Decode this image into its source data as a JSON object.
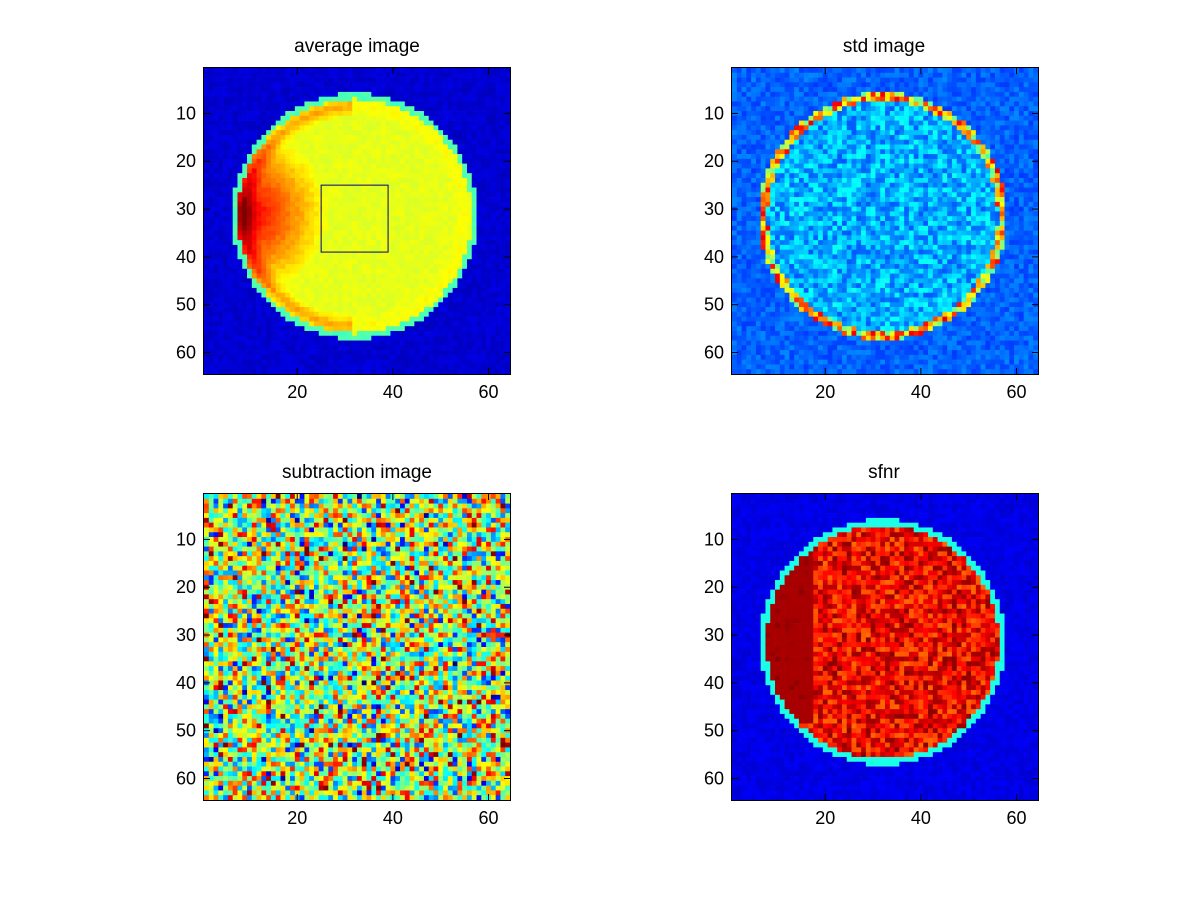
{
  "chart_data": [
    {
      "type": "heatmap",
      "title": "average image",
      "colormap": "jet",
      "grid_size": [
        64,
        64
      ],
      "xlim": [
        0.5,
        64.5
      ],
      "ylim": [
        0.5,
        64.5
      ],
      "y_direction": "reversed",
      "xticks": [
        20,
        40,
        60
      ],
      "yticks": [
        10,
        20,
        30,
        40,
        50,
        60
      ],
      "pattern": "disk",
      "disk": {
        "center": [
          32,
          31.5
        ],
        "radius": 25
      },
      "background_value": 0.08,
      "disk_value": 0.6,
      "roi_box": {
        "x_range": [
          25,
          39
        ],
        "y_range": [
          25,
          39
        ],
        "color": "#000080"
      }
    },
    {
      "type": "heatmap",
      "title": "std image",
      "colormap": "jet",
      "grid_size": [
        64,
        64
      ],
      "xlim": [
        0.5,
        64.5
      ],
      "ylim": [
        0.5,
        64.5
      ],
      "y_direction": "reversed",
      "xticks": [
        20,
        40,
        60
      ],
      "yticks": [
        10,
        20,
        30,
        40,
        50,
        60
      ],
      "pattern": "ring",
      "disk": {
        "center": [
          32,
          31.5
        ],
        "radius": 25
      },
      "background_value": 0.22,
      "disk_value": 0.3,
      "ring_value": 0.45
    },
    {
      "type": "heatmap",
      "title": "subtraction image",
      "colormap": "jet",
      "grid_size": [
        64,
        64
      ],
      "xlim": [
        0.5,
        64.5
      ],
      "ylim": [
        0.5,
        64.5
      ],
      "y_direction": "reversed",
      "xticks": [
        20,
        40,
        60
      ],
      "yticks": [
        10,
        20,
        30,
        40,
        50,
        60
      ],
      "pattern": "noise",
      "background_value": 0.55
    },
    {
      "type": "heatmap",
      "title": "sfnr",
      "colormap": "jet",
      "grid_size": [
        64,
        64
      ],
      "xlim": [
        0.5,
        64.5
      ],
      "ylim": [
        0.5,
        64.5
      ],
      "y_direction": "reversed",
      "xticks": [
        20,
        40,
        60
      ],
      "yticks": [
        10,
        20,
        30,
        40,
        50,
        60
      ],
      "pattern": "disk",
      "disk": {
        "center": [
          32,
          31.5
        ],
        "radius": 25
      },
      "background_value": 0.1,
      "disk_value": 0.88
    }
  ]
}
